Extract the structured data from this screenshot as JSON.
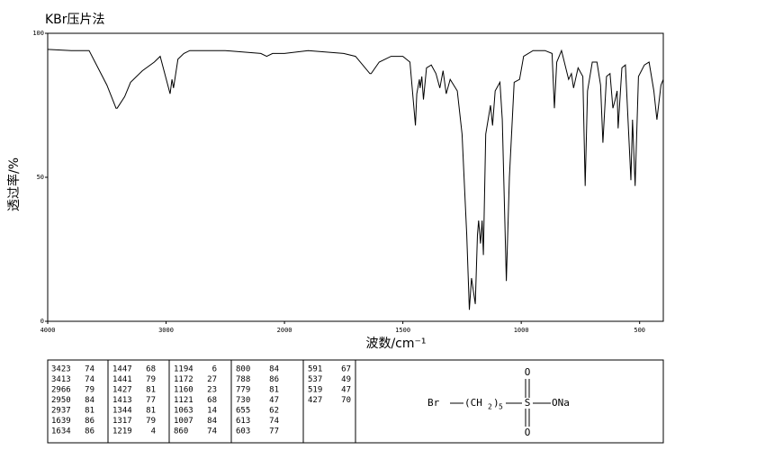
{
  "chart_data": {
    "type": "line",
    "title": "KBr压片法",
    "xlabel": "波数/cm⁻¹",
    "ylabel": "透过率/%",
    "xlim": [
      4000,
      400
    ],
    "x_scale_break": 2000,
    "xticks": [
      4000,
      3000,
      2000,
      1500,
      1000,
      500
    ],
    "ylim": [
      0,
      100
    ],
    "yticks": [
      0,
      50,
      100
    ],
    "color": "#000000",
    "x": [
      4000,
      3800,
      3650,
      3600,
      3500,
      3423,
      3413,
      3350,
      3300,
      3200,
      3100,
      3050,
      2966,
      2950,
      2937,
      2900,
      2850,
      2800,
      2500,
      2200,
      2150,
      2100,
      2000,
      1900,
      1750,
      1700,
      1639,
      1634,
      1600,
      1550,
      1500,
      1470,
      1447,
      1441,
      1430,
      1427,
      1420,
      1413,
      1400,
      1380,
      1360,
      1344,
      1330,
      1317,
      1300,
      1270,
      1250,
      1230,
      1219,
      1210,
      1194,
      1185,
      1180,
      1172,
      1165,
      1160,
      1150,
      1130,
      1121,
      1110,
      1090,
      1080,
      1063,
      1050,
      1030,
      1007,
      990,
      950,
      900,
      870,
      860,
      850,
      830,
      800,
      788,
      779,
      760,
      740,
      730,
      720,
      700,
      680,
      665,
      655,
      640,
      625,
      613,
      603,
      595,
      591,
      575,
      560,
      537,
      530,
      519,
      505,
      480,
      460,
      440,
      427,
      410,
      400
    ],
    "values": [
      94.4,
      94,
      94,
      90,
      82,
      74,
      74,
      78,
      83,
      87,
      90,
      92,
      79,
      84,
      81,
      91,
      93,
      94,
      94,
      93,
      92,
      93,
      93,
      94,
      93,
      92,
      86,
      86,
      90,
      92,
      92,
      90,
      68,
      79,
      84,
      81,
      85,
      77,
      88,
      89,
      86,
      81,
      87,
      79,
      84,
      80,
      65,
      30,
      4,
      15,
      6,
      30,
      35,
      27,
      35,
      23,
      65,
      75,
      68,
      80,
      83,
      70,
      14,
      50,
      83,
      84,
      92,
      94,
      94,
      93,
      74,
      90,
      94,
      84,
      86,
      81,
      88,
      85,
      47,
      80,
      90,
      90,
      82,
      62,
      85,
      86,
      74,
      77,
      80,
      67,
      88,
      89,
      49,
      70,
      47,
      85,
      89,
      90,
      80,
      70,
      82,
      84
    ]
  },
  "peak_table": [
    [
      [
        3423,
        74
      ],
      [
        3413,
        74
      ],
      [
        2966,
        79
      ],
      [
        2950,
        84
      ],
      [
        2937,
        81
      ],
      [
        1639,
        86
      ],
      [
        1634,
        86
      ]
    ],
    [
      [
        1447,
        68
      ],
      [
        1441,
        79
      ],
      [
        1427,
        81
      ],
      [
        1413,
        77
      ],
      [
        1344,
        81
      ],
      [
        1317,
        79
      ],
      [
        1219,
        4
      ]
    ],
    [
      [
        1194,
        6
      ],
      [
        1172,
        27
      ],
      [
        1160,
        23
      ],
      [
        1121,
        68
      ],
      [
        1063,
        14
      ],
      [
        1007,
        84
      ],
      [
        860,
        74
      ]
    ],
    [
      [
        800,
        84
      ],
      [
        788,
        86
      ],
      [
        779,
        81
      ],
      [
        730,
        47
      ],
      [
        655,
        62
      ],
      [
        613,
        74
      ],
      [
        603,
        77
      ]
    ],
    [
      [
        591,
        67
      ],
      [
        537,
        49
      ],
      [
        519,
        47
      ],
      [
        427,
        70
      ]
    ]
  ],
  "structure": {
    "left": "Br",
    "group": "(CH",
    "group_sub": "2",
    "close": ")",
    "count": "5",
    "center": "S",
    "top": "O",
    "bottom": "O",
    "right": "ONa"
  }
}
